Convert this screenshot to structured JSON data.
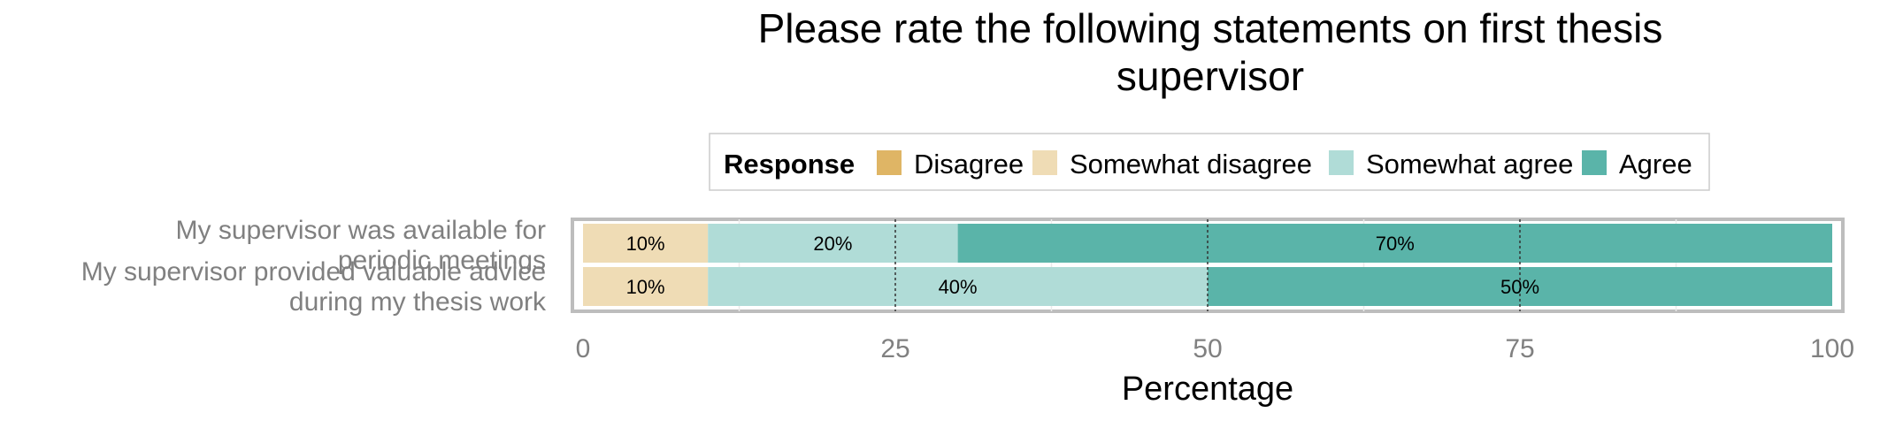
{
  "chart_data": {
    "type": "bar",
    "orientation": "horizontal",
    "stacked": true,
    "title": "Please rate the following statements on first thesis supervisor",
    "title_lines": [
      "Please rate the following statements on first thesis",
      "supervisor"
    ],
    "xlabel": "Percentage",
    "ylabel": "",
    "xlim": [
      0,
      100
    ],
    "xticks": [
      0,
      25,
      50,
      75,
      100
    ],
    "grid": true,
    "legend": {
      "title": "Response",
      "position": "top",
      "entries": [
        "Disagree",
        "Somewhat disagree",
        "Somewhat agree",
        "Agree"
      ]
    },
    "categories": [
      "My supervisor was available for periodic meetings",
      "My supervisor provided valuable advice during my thesis work"
    ],
    "category_lines": [
      [
        "My supervisor was available for",
        "periodic meetings"
      ],
      [
        "My supervisor provided valuable advice",
        "during my thesis work"
      ]
    ],
    "series": [
      {
        "name": "Disagree",
        "color": "#dfb565",
        "values": [
          0,
          0
        ]
      },
      {
        "name": "Somewhat disagree",
        "color": "#efdcb5",
        "values": [
          10,
          10
        ]
      },
      {
        "name": "Somewhat agree",
        "color": "#b0dcd7",
        "values": [
          20,
          40
        ]
      },
      {
        "name": "Agree",
        "color": "#5ab4a9",
        "values": [
          70,
          50
        ]
      }
    ],
    "bar_labels": [
      [
        "",
        "10%",
        "20%",
        "70%"
      ],
      [
        "",
        "10%",
        "40%",
        "50%"
      ]
    ]
  }
}
